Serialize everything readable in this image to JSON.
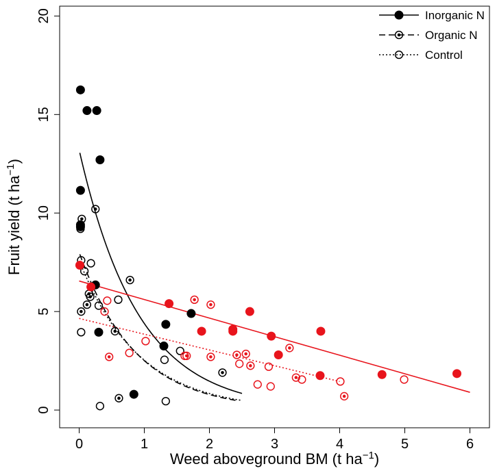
{
  "chart_data": {
    "type": "scatter",
    "xlabel": "Weed aboveground BM (t ha",
    "xlabel_sup": "−1",
    "xlabel_end": ")",
    "ylabel": "Fruit yield (t ha",
    "ylabel_sup": "−1",
    "ylabel_end": ")",
    "xlim": [
      -0.3,
      6.3
    ],
    "ylim": [
      -0.9,
      20.5
    ],
    "x_ticks": [
      0,
      1,
      2,
      3,
      4,
      5,
      6
    ],
    "x_tick_labels": [
      "0",
      "1",
      "2",
      "3",
      "4",
      "5",
      "6"
    ],
    "y_ticks": [
      0,
      5,
      10,
      15,
      20
    ],
    "y_tick_labels": [
      "0",
      "5",
      "10",
      "15",
      "20"
    ],
    "grid": false,
    "legend_position": "top-right",
    "legend": [
      {
        "label": "Inorganic N",
        "marker": "filled",
        "line": "solid"
      },
      {
        "label": "Organic N",
        "marker": "dotted",
        "line": "dashed"
      },
      {
        "label": "Control",
        "marker": "open",
        "line": "dotted"
      }
    ],
    "colors": {
      "black": "#000000",
      "red": "#e8141c"
    },
    "series": [
      {
        "name": "Inorganic N",
        "group": "black",
        "marker": "filled",
        "points": [
          [
            0.02,
            16.25
          ],
          [
            0.12,
            15.2
          ],
          [
            0.27,
            15.2
          ],
          [
            0.32,
            12.7
          ],
          [
            0.02,
            11.15
          ],
          [
            0.02,
            9.4
          ],
          [
            0.02,
            9.3
          ],
          [
            0.25,
            6.35
          ],
          [
            0.3,
            3.95
          ],
          [
            1.33,
            4.35
          ],
          [
            1.3,
            3.25
          ],
          [
            1.72,
            4.9
          ],
          [
            0.84,
            0.8
          ]
        ]
      },
      {
        "name": "Organic N",
        "group": "black",
        "marker": "dotted",
        "points": [
          [
            0.25,
            10.2
          ],
          [
            0.04,
            9.7
          ],
          [
            0.02,
            9.4
          ],
          [
            0.78,
            6.6
          ],
          [
            0.15,
            5.9
          ],
          [
            0.17,
            5.75
          ],
          [
            0.12,
            5.35
          ],
          [
            0.03,
            5.0
          ],
          [
            0.55,
            4.0
          ],
          [
            2.2,
            1.9
          ],
          [
            0.61,
            0.6
          ]
        ]
      },
      {
        "name": "Control",
        "group": "black",
        "marker": "open",
        "points": [
          [
            0.02,
            9.2
          ],
          [
            0.03,
            7.6
          ],
          [
            0.18,
            7.45
          ],
          [
            0.08,
            7.05
          ],
          [
            0.3,
            5.3
          ],
          [
            0.6,
            5.6
          ],
          [
            0.03,
            3.95
          ],
          [
            1.55,
            3.0
          ],
          [
            1.31,
            2.55
          ],
          [
            1.33,
            0.45
          ],
          [
            0.32,
            0.2
          ]
        ]
      },
      {
        "name": "Inorganic N",
        "group": "red",
        "marker": "filled",
        "points": [
          [
            0.01,
            7.35
          ],
          [
            0.18,
            6.25
          ],
          [
            1.38,
            5.4
          ],
          [
            2.62,
            5.0
          ],
          [
            1.88,
            4.0
          ],
          [
            2.36,
            4.1
          ],
          [
            2.36,
            4.0
          ],
          [
            2.95,
            3.75
          ],
          [
            3.06,
            2.8
          ],
          [
            3.71,
            4.0
          ],
          [
            3.7,
            1.75
          ],
          [
            4.65,
            1.8
          ],
          [
            5.8,
            1.85
          ]
        ]
      },
      {
        "name": "Organic N",
        "group": "red",
        "marker": "dotted",
        "points": [
          [
            1.77,
            5.6
          ],
          [
            2.02,
            5.35
          ],
          [
            3.23,
            3.15
          ],
          [
            2.56,
            2.85
          ],
          [
            2.42,
            2.8
          ],
          [
            1.65,
            2.75
          ],
          [
            2.02,
            2.7
          ],
          [
            0.46,
            2.7
          ],
          [
            2.63,
            2.25
          ],
          [
            3.33,
            1.65
          ],
          [
            4.07,
            0.7
          ]
        ]
      },
      {
        "name": "Control",
        "group": "red",
        "marker": "open",
        "points": [
          [
            0.43,
            5.55
          ],
          [
            0.39,
            5.0
          ],
          [
            1.02,
            3.5
          ],
          [
            0.77,
            2.9
          ],
          [
            2.46,
            2.35
          ],
          [
            1.62,
            2.75
          ],
          [
            2.91,
            2.2
          ],
          [
            2.74,
            1.3
          ],
          [
            2.94,
            1.2
          ],
          [
            3.42,
            1.55
          ],
          [
            4.01,
            1.45
          ],
          [
            4.99,
            1.55
          ]
        ]
      }
    ],
    "fitted_curves": [
      {
        "name": "Inorganic N",
        "group": "black",
        "line": "solid",
        "model": "exponential",
        "a": 13.2,
        "b": 1.1,
        "x_range": [
          0.01,
          2.5
        ]
      },
      {
        "name": "Organic N",
        "group": "black",
        "line": "dashed",
        "model": "exponential",
        "a": 8.0,
        "b": 1.16,
        "x_range": [
          0.01,
          2.4
        ]
      },
      {
        "name": "Control",
        "group": "black",
        "line": "dotted",
        "model": "exponential",
        "a": 7.6,
        "b": 1.1,
        "x_range": [
          0.01,
          2.5
        ]
      },
      {
        "name": "Inorganic N",
        "group": "red",
        "line": "solid",
        "model": "linear",
        "x": [
          0,
          6
        ],
        "y": [
          6.55,
          0.9
        ]
      },
      {
        "name": "Control",
        "group": "red",
        "line": "dotted",
        "model": "linear",
        "x": [
          0,
          4
        ],
        "y": [
          4.65,
          1.45
        ]
      }
    ]
  }
}
